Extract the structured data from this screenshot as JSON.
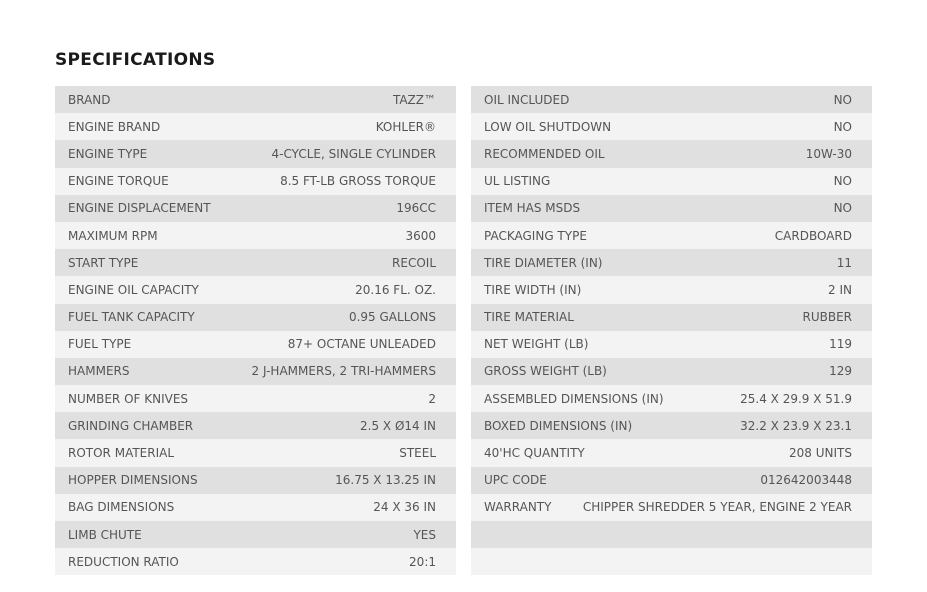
{
  "title": "SPECIFICATIONS",
  "left_table": {
    "rows": [
      [
        "BRAND",
        "TAZZ™"
      ],
      [
        "ENGINE BRAND",
        "KOHLER®"
      ],
      [
        "ENGINE TYPE",
        "4-CYCLE, SINGLE CYLINDER"
      ],
      [
        "ENGINE TORQUE",
        "8.5 FT-LB GROSS TORQUE"
      ],
      [
        "ENGINE DISPLACEMENT",
        "196CC"
      ],
      [
        "MAXIMUM RPM",
        "3600"
      ],
      [
        "START TYPE",
        "RECOIL"
      ],
      [
        "ENGINE OIL CAPACITY",
        "20.16 FL. OZ."
      ],
      [
        "FUEL TANK CAPACITY",
        "0.95 GALLONS"
      ],
      [
        "FUEL TYPE",
        "87+ OCTANE UNLEADED"
      ],
      [
        "HAMMERS",
        "2 J-HAMMERS, 2 TRI-HAMMERS"
      ],
      [
        "NUMBER OF KNIVES",
        "2"
      ],
      [
        "GRINDING CHAMBER",
        "2.5 X Ø14 IN"
      ],
      [
        "ROTOR MATERIAL",
        "STEEL"
      ],
      [
        "HOPPER DIMENSIONS",
        "16.75 X 13.25 IN"
      ],
      [
        "BAG DIMENSIONS",
        "24 X 36 IN"
      ],
      [
        "LIMB CHUTE",
        "YES"
      ],
      [
        "REDUCTION RATIO",
        "20:1"
      ]
    ]
  },
  "right_table": {
    "rows": [
      [
        "OIL INCLUDED",
        "NO"
      ],
      [
        "LOW OIL SHUTDOWN",
        "NO"
      ],
      [
        "RECOMMENDED OIL",
        "10W-30"
      ],
      [
        "UL LISTING",
        "NO"
      ],
      [
        "ITEM HAS MSDS",
        "NO"
      ],
      [
        "PACKAGING TYPE",
        "CARDBOARD"
      ],
      [
        "TIRE DIAMETER (IN)",
        "11"
      ],
      [
        "TIRE WIDTH (IN)",
        "2 IN"
      ],
      [
        "TIRE MATERIAL",
        "RUBBER"
      ],
      [
        "NET WEIGHT (LB)",
        "119"
      ],
      [
        "GROSS WEIGHT (LB)",
        "129"
      ],
      [
        "ASSEMBLED DIMENSIONS (IN)",
        "25.4 X 29.9 X 51.9"
      ],
      [
        "BOXED DIMENSIONS (IN)",
        "32.2 X 23.9 X 23.1"
      ],
      [
        "40'HC QUANTITY",
        "208 UNITS"
      ],
      [
        "UPC CODE",
        "012642003448"
      ],
      [
        "WARRANTY",
        "CHIPPER SHREDDER 5 YEAR, ENGINE 2 YEAR"
      ]
    ]
  }
}
